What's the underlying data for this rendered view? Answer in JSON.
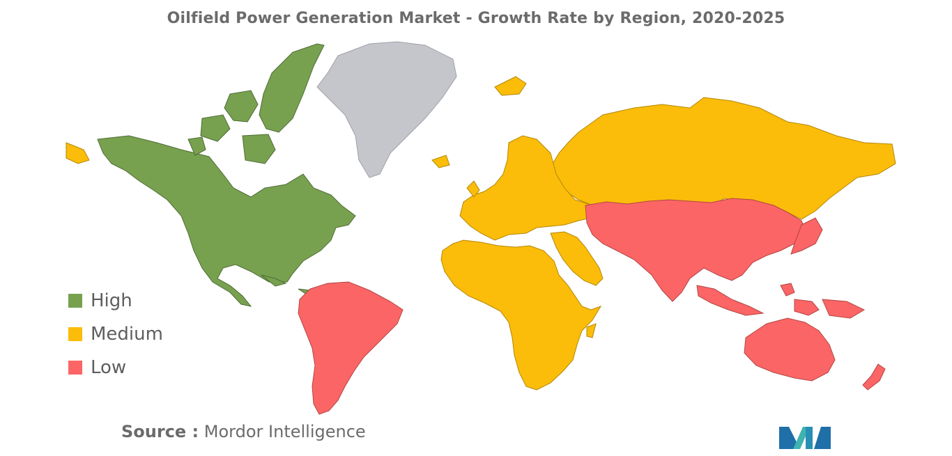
{
  "title": "Oilfield Power Generation Market - Growth Rate by Region, 2020-2025",
  "legend": [
    {
      "label": "High",
      "color": "#77a14f"
    },
    {
      "label": "Medium",
      "color": "#fbbd09"
    },
    {
      "label": "Low",
      "color": "#fc6565"
    }
  ],
  "regions": {
    "north_america": "High",
    "europe_africa_russia_middle_east": "Medium",
    "south_america_asia_pacific": "Low",
    "greenland": "No data"
  },
  "colors": {
    "no_data": "#c4c6cb"
  },
  "source": {
    "label": "Source :",
    "text": " Mordor Intelligence"
  },
  "logo": {
    "icon": "mordor-intelligence-logo"
  }
}
